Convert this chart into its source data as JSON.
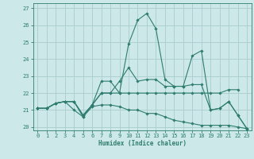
{
  "xlabel": "Humidex (Indice chaleur)",
  "xlim": [
    -0.5,
    23.5
  ],
  "ylim": [
    19.8,
    27.3
  ],
  "yticks": [
    20,
    21,
    22,
    23,
    24,
    25,
    26,
    27
  ],
  "xticks": [
    0,
    1,
    2,
    3,
    4,
    5,
    6,
    7,
    8,
    9,
    10,
    11,
    12,
    13,
    14,
    15,
    16,
    17,
    18,
    19,
    20,
    21,
    22,
    23
  ],
  "bg_color": "#cce8e8",
  "line_color": "#2e7d6e",
  "grid_color": "#aacccc",
  "lines": [
    {
      "x": [
        0,
        1,
        2,
        3,
        4,
        5,
        6,
        7,
        8,
        9,
        10,
        11,
        12,
        13,
        14,
        15,
        16,
        17,
        18,
        19,
        20,
        21,
        22
      ],
      "y": [
        21.1,
        21.1,
        21.4,
        21.5,
        21.5,
        20.7,
        21.3,
        22.0,
        22.0,
        22.0,
        22.0,
        22.0,
        22.0,
        22.0,
        22.0,
        22.0,
        22.0,
        22.0,
        22.0,
        22.0,
        22.0,
        22.2,
        22.2
      ]
    },
    {
      "x": [
        0,
        1,
        2,
        3,
        4,
        5,
        6,
        7,
        8,
        9,
        10,
        11,
        12,
        13,
        14,
        15,
        16,
        17,
        18,
        19,
        20,
        21,
        22,
        23
      ],
      "y": [
        21.1,
        21.1,
        21.4,
        21.5,
        21.5,
        20.6,
        21.3,
        22.7,
        22.7,
        22.0,
        24.9,
        26.3,
        26.7,
        25.8,
        22.8,
        22.4,
        22.4,
        24.2,
        24.5,
        21.0,
        21.1,
        21.5,
        20.7,
        19.9
      ]
    },
    {
      "x": [
        0,
        1,
        2,
        3,
        4,
        5,
        6,
        7,
        8,
        9,
        10,
        11,
        12,
        13,
        14,
        15,
        16,
        17,
        18,
        19,
        20,
        21,
        22,
        23
      ],
      "y": [
        21.1,
        21.1,
        21.4,
        21.5,
        21.5,
        20.7,
        21.3,
        22.0,
        22.0,
        22.7,
        23.5,
        22.7,
        22.8,
        22.8,
        22.4,
        22.4,
        22.4,
        22.5,
        22.5,
        21.0,
        21.1,
        21.5,
        20.7,
        19.9
      ]
    },
    {
      "x": [
        0,
        1,
        2,
        3,
        4,
        5,
        6,
        7,
        8,
        9,
        10,
        11,
        12,
        13,
        14,
        15,
        16,
        17,
        18,
        19,
        20,
        21,
        22,
        23
      ],
      "y": [
        21.1,
        21.1,
        21.4,
        21.5,
        21.0,
        20.6,
        21.2,
        21.3,
        21.3,
        21.2,
        21.0,
        21.0,
        20.8,
        20.8,
        20.6,
        20.4,
        20.3,
        20.2,
        20.1,
        20.1,
        20.1,
        20.1,
        20.0,
        19.9
      ]
    }
  ]
}
